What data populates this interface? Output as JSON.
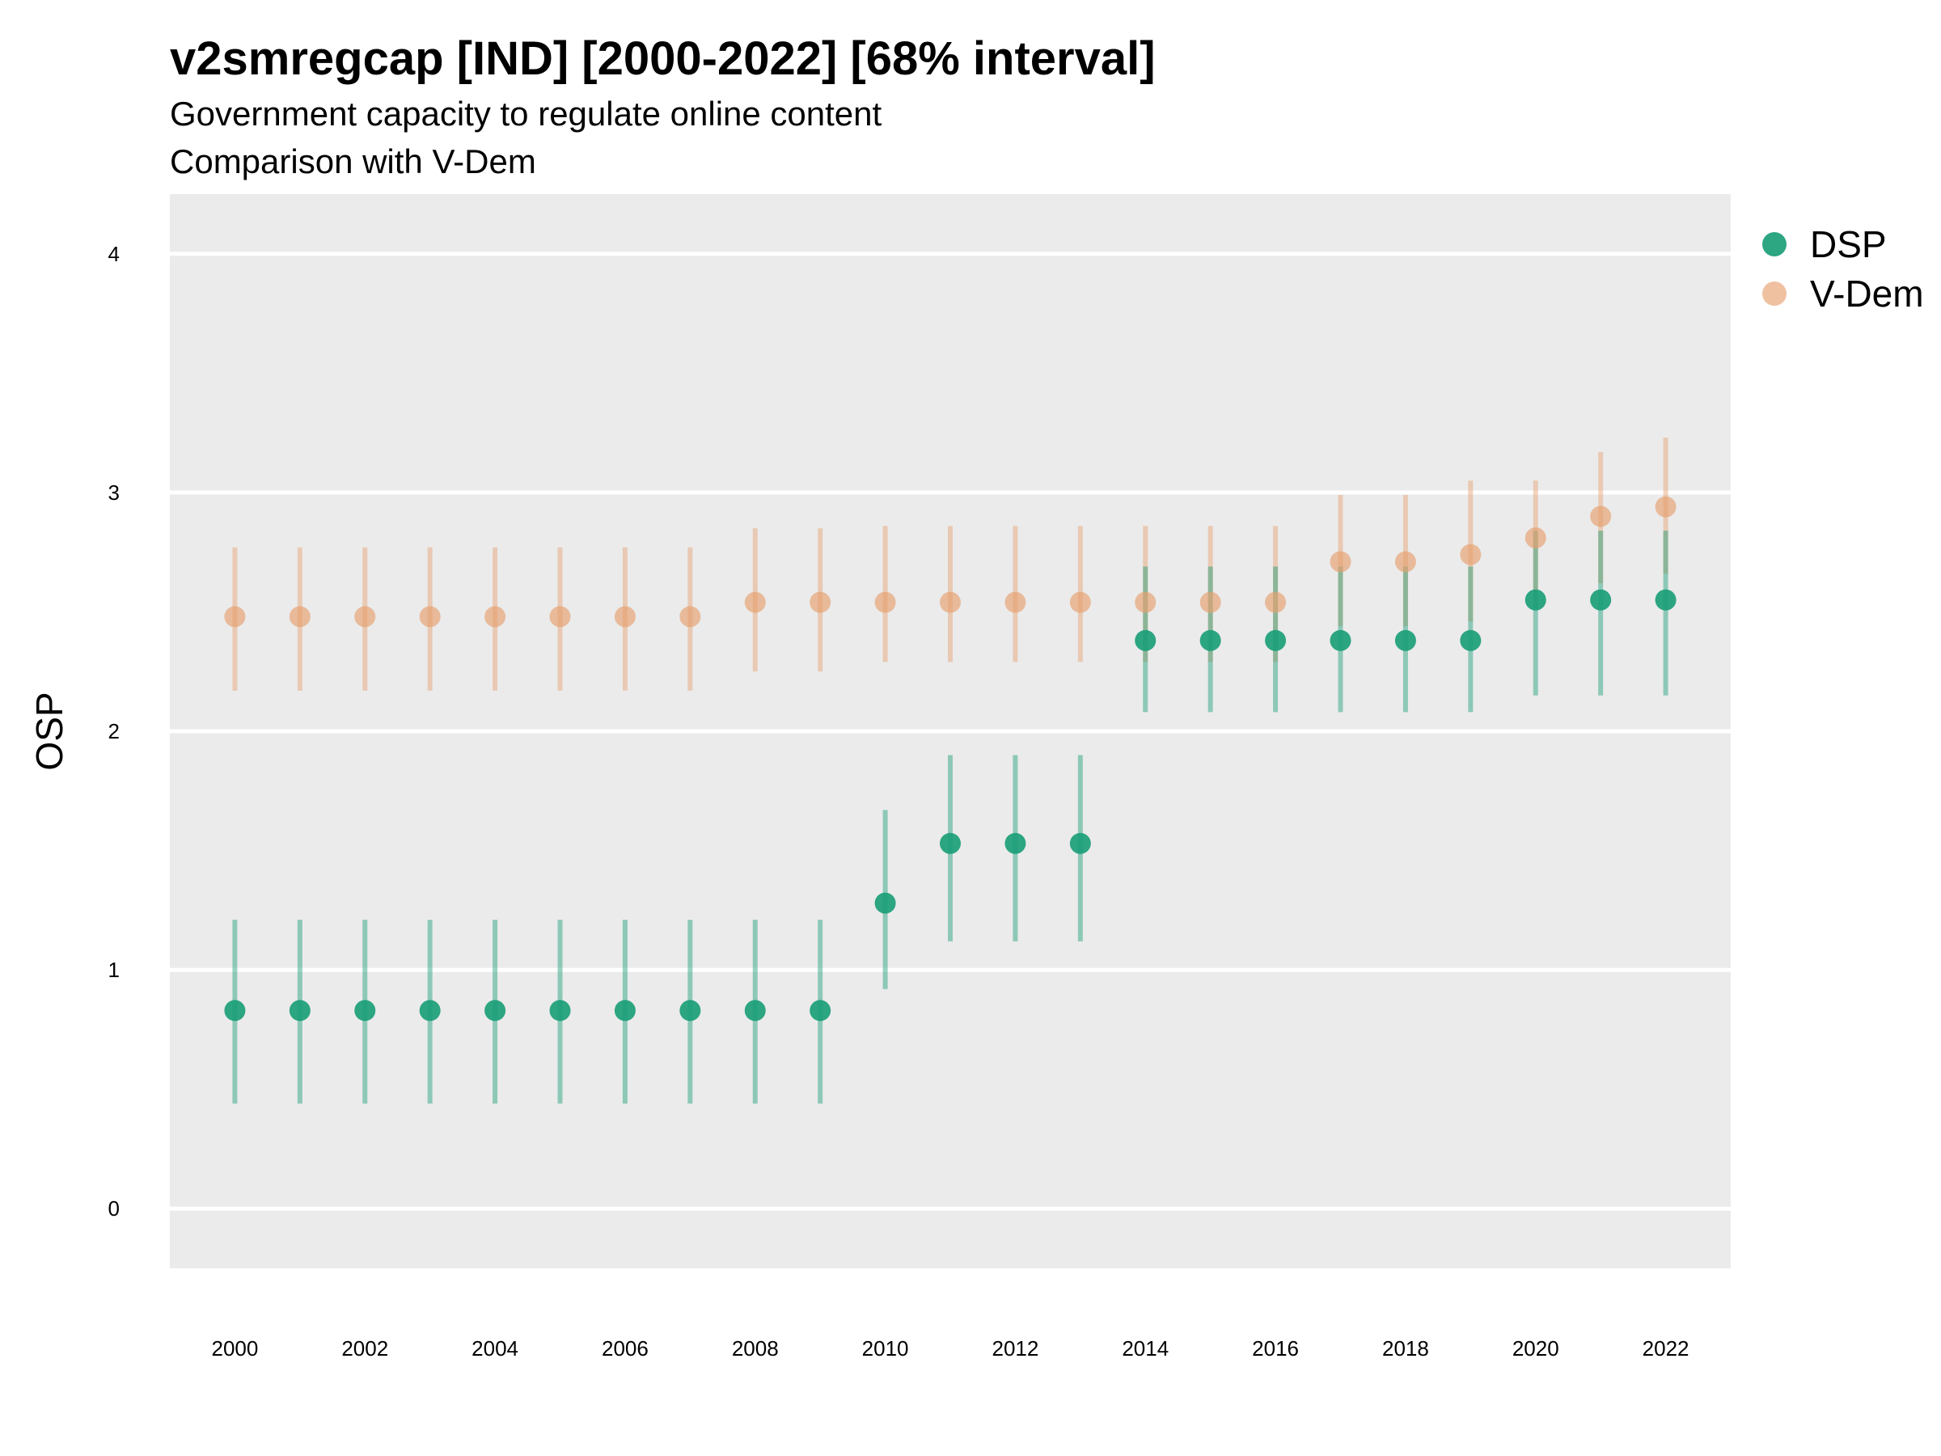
{
  "chart_data": {
    "type": "scatter",
    "title": "v2smregcap [IND] [2000-2022] [68% interval]",
    "subtitle": "Government capacity to regulate online content",
    "subtitle2": "Comparison with V-Dem",
    "xlabel": "",
    "ylabel": "OSP",
    "xlim": [
      1999,
      2023
    ],
    "ylim": [
      -0.25,
      4.25
    ],
    "x_ticks": [
      "2000",
      "2002",
      "2004",
      "2006",
      "2008",
      "2010",
      "2012",
      "2014",
      "2016",
      "2018",
      "2020",
      "2022"
    ],
    "y_ticks": [
      "0",
      "1",
      "2",
      "3",
      "4"
    ],
    "grid": true,
    "legend_position": "right",
    "x": [
      2000,
      2001,
      2002,
      2003,
      2004,
      2005,
      2006,
      2007,
      2008,
      2009,
      2010,
      2011,
      2012,
      2013,
      2014,
      2015,
      2016,
      2017,
      2018,
      2019,
      2020,
      2021,
      2022
    ],
    "series": [
      {
        "name": "V-Dem",
        "color": "#E6A06E",
        "values": [
          2.48,
          2.48,
          2.48,
          2.48,
          2.48,
          2.48,
          2.48,
          2.48,
          2.54,
          2.54,
          2.54,
          2.54,
          2.54,
          2.54,
          2.54,
          2.54,
          2.54,
          2.71,
          2.71,
          2.74,
          2.81,
          2.9,
          2.94
        ],
        "lower": [
          2.17,
          2.17,
          2.17,
          2.17,
          2.17,
          2.17,
          2.17,
          2.17,
          2.25,
          2.25,
          2.29,
          2.29,
          2.29,
          2.29,
          2.29,
          2.29,
          2.29,
          2.44,
          2.44,
          2.46,
          2.52,
          2.62,
          2.66
        ],
        "upper": [
          2.77,
          2.77,
          2.77,
          2.77,
          2.77,
          2.77,
          2.77,
          2.77,
          2.85,
          2.85,
          2.86,
          2.86,
          2.86,
          2.86,
          2.86,
          2.86,
          2.86,
          2.99,
          2.99,
          3.05,
          3.05,
          3.17,
          3.23
        ]
      },
      {
        "name": "DSP",
        "color": "#1B9E77",
        "values": [
          0.83,
          0.83,
          0.83,
          0.83,
          0.83,
          0.83,
          0.83,
          0.83,
          0.83,
          0.83,
          1.28,
          1.53,
          1.53,
          1.53,
          2.38,
          2.38,
          2.38,
          2.38,
          2.38,
          2.38,
          2.55,
          2.55,
          2.55
        ],
        "lower": [
          0.44,
          0.44,
          0.44,
          0.44,
          0.44,
          0.44,
          0.44,
          0.44,
          0.44,
          0.44,
          0.92,
          1.12,
          1.12,
          1.12,
          2.08,
          2.08,
          2.08,
          2.08,
          2.08,
          2.08,
          2.15,
          2.15,
          2.15
        ],
        "upper": [
          1.21,
          1.21,
          1.21,
          1.21,
          1.21,
          1.21,
          1.21,
          1.21,
          1.21,
          1.21,
          1.67,
          1.9,
          1.9,
          1.9,
          2.69,
          2.69,
          2.69,
          2.69,
          2.69,
          2.69,
          2.84,
          2.84,
          2.84
        ]
      }
    ],
    "legend": [
      "DSP",
      "V-Dem"
    ]
  }
}
